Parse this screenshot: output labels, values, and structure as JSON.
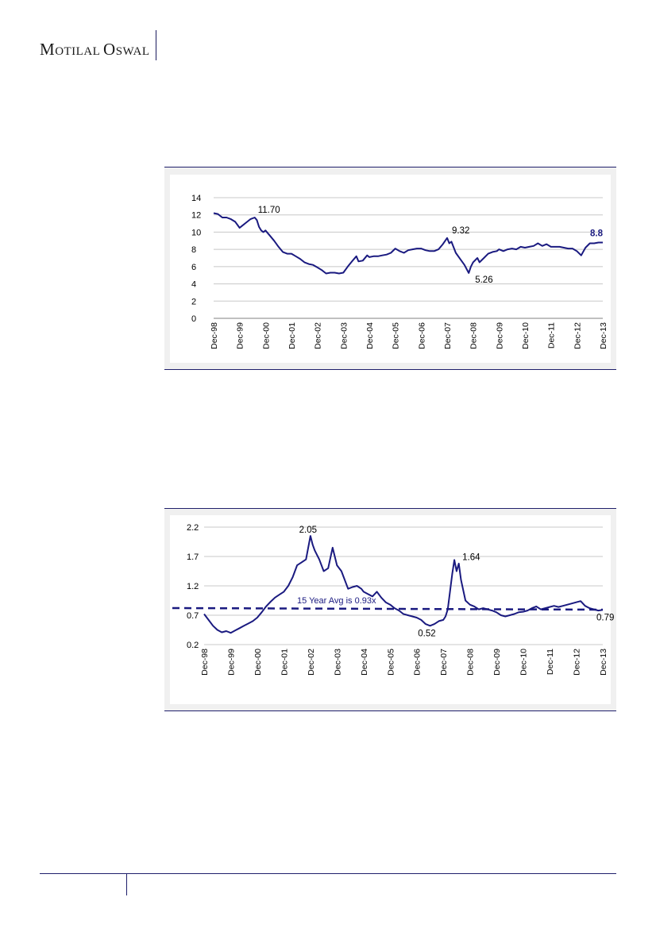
{
  "header": {
    "logo_text_1": "MOTILAL",
    "logo_text_2": "OSWAL"
  },
  "colors": {
    "series": "#1a1a80",
    "grid": "#c8c8c8",
    "frame_bg": "#f0f0f0",
    "rule": "#1f1f6b"
  },
  "chart_data": [
    {
      "type": "line",
      "xtick_labels": [
        "Dec-98",
        "Dec-99",
        "Dec-00",
        "Dec-01",
        "Dec-02",
        "Dec-03",
        "Dec-04",
        "Dec-05",
        "Dec-06",
        "Dec-07",
        "Dec-08",
        "Dec-09",
        "Dec-10",
        "Dec-11",
        "Dec-12",
        "Dec-13"
      ],
      "ylim": [
        0,
        14
      ],
      "yticks": [
        0,
        2,
        4,
        6,
        8,
        10,
        12,
        14
      ],
      "grid": true,
      "series": [
        {
          "points": [
            [
              "1998-12",
              12.2
            ],
            [
              "1999-02",
              12.1
            ],
            [
              "1999-04",
              11.7
            ],
            [
              "1999-06",
              11.7
            ],
            [
              "1999-08",
              11.5
            ],
            [
              "1999-10",
              11.2
            ],
            [
              "1999-12",
              10.5
            ],
            [
              "2000-01",
              10.7
            ],
            [
              "2000-03",
              11.1
            ],
            [
              "2000-05",
              11.5
            ],
            [
              "2000-07",
              11.7
            ],
            [
              "2000-08",
              11.4
            ],
            [
              "2000-09",
              10.6
            ],
            [
              "2000-10",
              10.2
            ],
            [
              "2000-11",
              10.0
            ],
            [
              "2000-12",
              10.2
            ],
            [
              "2001-02",
              9.6
            ],
            [
              "2001-04",
              9.0
            ],
            [
              "2001-06",
              8.3
            ],
            [
              "2001-08",
              7.7
            ],
            [
              "2001-10",
              7.5
            ],
            [
              "2001-12",
              7.5
            ],
            [
              "2002-02",
              7.2
            ],
            [
              "2002-04",
              6.9
            ],
            [
              "2002-06",
              6.5
            ],
            [
              "2002-08",
              6.3
            ],
            [
              "2002-10",
              6.2
            ],
            [
              "2002-12",
              5.9
            ],
            [
              "2003-02",
              5.6
            ],
            [
              "2003-04",
              5.2
            ],
            [
              "2003-06",
              5.3
            ],
            [
              "2003-08",
              5.3
            ],
            [
              "2003-10",
              5.2
            ],
            [
              "2003-12",
              5.3
            ],
            [
              "2004-02",
              6.0
            ],
            [
              "2004-04",
              6.6
            ],
            [
              "2004-06",
              7.2
            ],
            [
              "2004-07",
              6.6
            ],
            [
              "2004-09",
              6.7
            ],
            [
              "2004-11",
              7.3
            ],
            [
              "2004-12",
              7.1
            ],
            [
              "2005-02",
              7.2
            ],
            [
              "2005-04",
              7.2
            ],
            [
              "2005-06",
              7.3
            ],
            [
              "2005-08",
              7.4
            ],
            [
              "2005-10",
              7.6
            ],
            [
              "2005-12",
              8.1
            ],
            [
              "2006-02",
              7.8
            ],
            [
              "2006-04",
              7.6
            ],
            [
              "2006-06",
              7.9
            ],
            [
              "2006-08",
              8.0
            ],
            [
              "2006-10",
              8.1
            ],
            [
              "2006-12",
              8.1
            ],
            [
              "2007-02",
              7.9
            ],
            [
              "2007-04",
              7.8
            ],
            [
              "2007-06",
              7.8
            ],
            [
              "2007-08",
              8.0
            ],
            [
              "2007-10",
              8.6
            ],
            [
              "2007-12",
              9.32
            ],
            [
              "2008-01",
              8.7
            ],
            [
              "2008-02",
              8.9
            ],
            [
              "2008-04",
              7.6
            ],
            [
              "2008-06",
              6.9
            ],
            [
              "2008-08",
              6.2
            ],
            [
              "2008-10",
              5.26
            ],
            [
              "2008-11",
              6.0
            ],
            [
              "2008-12",
              6.5
            ],
            [
              "2009-02",
              7.0
            ],
            [
              "2009-03",
              6.5
            ],
            [
              "2009-05",
              7.0
            ],
            [
              "2009-07",
              7.5
            ],
            [
              "2009-09",
              7.7
            ],
            [
              "2009-11",
              7.8
            ],
            [
              "2009-12",
              8.0
            ],
            [
              "2010-02",
              7.8
            ],
            [
              "2010-04",
              8.0
            ],
            [
              "2010-06",
              8.1
            ],
            [
              "2010-08",
              8.0
            ],
            [
              "2010-10",
              8.3
            ],
            [
              "2010-12",
              8.2
            ],
            [
              "2011-02",
              8.3
            ],
            [
              "2011-04",
              8.4
            ],
            [
              "2011-06",
              8.7
            ],
            [
              "2011-08",
              8.4
            ],
            [
              "2011-10",
              8.6
            ],
            [
              "2011-12",
              8.3
            ],
            [
              "2012-02",
              8.3
            ],
            [
              "2012-04",
              8.3
            ],
            [
              "2012-06",
              8.2
            ],
            [
              "2012-08",
              8.1
            ],
            [
              "2012-10",
              8.1
            ],
            [
              "2012-12",
              7.8
            ],
            [
              "2013-02",
              7.3
            ],
            [
              "2013-04",
              8.2
            ],
            [
              "2013-06",
              8.7
            ],
            [
              "2013-08",
              8.7
            ],
            [
              "2013-10",
              8.8
            ],
            [
              "2013-12",
              8.8
            ]
          ]
        }
      ],
      "annotations": [
        {
          "text": "11.70",
          "x": "2000-07",
          "y": 11.7,
          "bold": false
        },
        {
          "text": "9.32",
          "x": "2007-12",
          "y": 9.32,
          "bold": false
        },
        {
          "text": "5.26",
          "x": "2008-10",
          "y": 5.26,
          "bold": false
        },
        {
          "text": "8.8",
          "x": "2013-12",
          "y": 8.8,
          "bold": true
        }
      ]
    },
    {
      "type": "line",
      "xtick_labels": [
        "Dec-98",
        "Dec-99",
        "Dec-00",
        "Dec-01",
        "Dec-02",
        "Dec-03",
        "Dec-04",
        "Dec-05",
        "Dec-06",
        "Dec-07",
        "Dec-08",
        "Dec-09",
        "Dec-10",
        "Dec-11",
        "Dec-12",
        "Dec-13"
      ],
      "ylim": [
        0.2,
        2.2
      ],
      "yticks": [
        0.2,
        0.7,
        1.2,
        1.7,
        2.2
      ],
      "grid": true,
      "series": [
        {
          "points": [
            [
              "1998-12",
              0.72
            ],
            [
              "1999-02",
              0.62
            ],
            [
              "1999-04",
              0.52
            ],
            [
              "1999-06",
              0.45
            ],
            [
              "1999-08",
              0.41
            ],
            [
              "1999-10",
              0.43
            ],
            [
              "1999-12",
              0.4
            ],
            [
              "2000-02",
              0.44
            ],
            [
              "2000-04",
              0.48
            ],
            [
              "2000-06",
              0.52
            ],
            [
              "2000-08",
              0.56
            ],
            [
              "2000-10",
              0.6
            ],
            [
              "2000-12",
              0.66
            ],
            [
              "2001-02",
              0.75
            ],
            [
              "2001-04",
              0.85
            ],
            [
              "2001-06",
              0.93
            ],
            [
              "2001-08",
              1.0
            ],
            [
              "2001-10",
              1.05
            ],
            [
              "2001-12",
              1.1
            ],
            [
              "2002-02",
              1.2
            ],
            [
              "2002-04",
              1.35
            ],
            [
              "2002-06",
              1.55
            ],
            [
              "2002-08",
              1.6
            ],
            [
              "2002-10",
              1.65
            ],
            [
              "2002-12",
              2.05
            ],
            [
              "2003-01",
              1.9
            ],
            [
              "2003-02",
              1.8
            ],
            [
              "2003-04",
              1.65
            ],
            [
              "2003-06",
              1.45
            ],
            [
              "2003-08",
              1.5
            ],
            [
              "2003-10",
              1.85
            ],
            [
              "2003-12",
              1.55
            ],
            [
              "2004-02",
              1.45
            ],
            [
              "2004-03",
              1.35
            ],
            [
              "2004-05",
              1.15
            ],
            [
              "2004-07",
              1.18
            ],
            [
              "2004-09",
              1.2
            ],
            [
              "2004-11",
              1.15
            ],
            [
              "2004-12",
              1.1
            ],
            [
              "2005-02",
              1.06
            ],
            [
              "2005-04",
              1.02
            ],
            [
              "2005-06",
              1.1
            ],
            [
              "2005-08",
              1.0
            ],
            [
              "2005-10",
              0.92
            ],
            [
              "2005-12",
              0.88
            ],
            [
              "2006-02",
              0.82
            ],
            [
              "2006-04",
              0.78
            ],
            [
              "2006-06",
              0.72
            ],
            [
              "2006-08",
              0.7
            ],
            [
              "2006-10",
              0.68
            ],
            [
              "2006-12",
              0.66
            ],
            [
              "2007-02",
              0.62
            ],
            [
              "2007-04",
              0.55
            ],
            [
              "2007-06",
              0.52
            ],
            [
              "2007-08",
              0.55
            ],
            [
              "2007-10",
              0.6
            ],
            [
              "2007-12",
              0.62
            ],
            [
              "2008-01",
              0.68
            ],
            [
              "2008-02",
              0.8
            ],
            [
              "2008-03",
              1.1
            ],
            [
              "2008-04",
              1.4
            ],
            [
              "2008-05",
              1.64
            ],
            [
              "2008-06",
              1.45
            ],
            [
              "2008-07",
              1.58
            ],
            [
              "2008-08",
              1.3
            ],
            [
              "2008-10",
              0.95
            ],
            [
              "2008-12",
              0.88
            ],
            [
              "2009-02",
              0.85
            ],
            [
              "2009-04",
              0.8
            ],
            [
              "2009-06",
              0.82
            ],
            [
              "2009-08",
              0.8
            ],
            [
              "2009-10",
              0.78
            ],
            [
              "2009-12",
              0.75
            ],
            [
              "2010-02",
              0.7
            ],
            [
              "2010-04",
              0.68
            ],
            [
              "2010-06",
              0.7
            ],
            [
              "2010-08",
              0.72
            ],
            [
              "2010-10",
              0.75
            ],
            [
              "2010-12",
              0.76
            ],
            [
              "2011-02",
              0.78
            ],
            [
              "2011-04",
              0.82
            ],
            [
              "2011-06",
              0.85
            ],
            [
              "2011-08",
              0.8
            ],
            [
              "2011-10",
              0.82
            ],
            [
              "2011-12",
              0.84
            ],
            [
              "2012-02",
              0.86
            ],
            [
              "2012-04",
              0.84
            ],
            [
              "2012-06",
              0.86
            ],
            [
              "2012-08",
              0.88
            ],
            [
              "2012-10",
              0.9
            ],
            [
              "2012-12",
              0.92
            ],
            [
              "2013-02",
              0.94
            ],
            [
              "2013-04",
              0.86
            ],
            [
              "2013-06",
              0.82
            ],
            [
              "2013-08",
              0.8
            ],
            [
              "2013-10",
              0.78
            ],
            [
              "2013-12",
              0.79
            ]
          ]
        }
      ],
      "average": {
        "value": 0.93,
        "label": "15 Year Avg is 0.93x"
      },
      "annotations": [
        {
          "text": "2.05",
          "x": "2002-12",
          "y": 2.05,
          "bold": false
        },
        {
          "text": "1.64",
          "x": "2008-05",
          "y": 1.64,
          "bold": false
        },
        {
          "text": "0.52",
          "x": "2007-06",
          "y": 0.52,
          "bold": false
        },
        {
          "text": "0.79",
          "x": "2013-12",
          "y": 0.79,
          "bold": false
        }
      ]
    }
  ]
}
